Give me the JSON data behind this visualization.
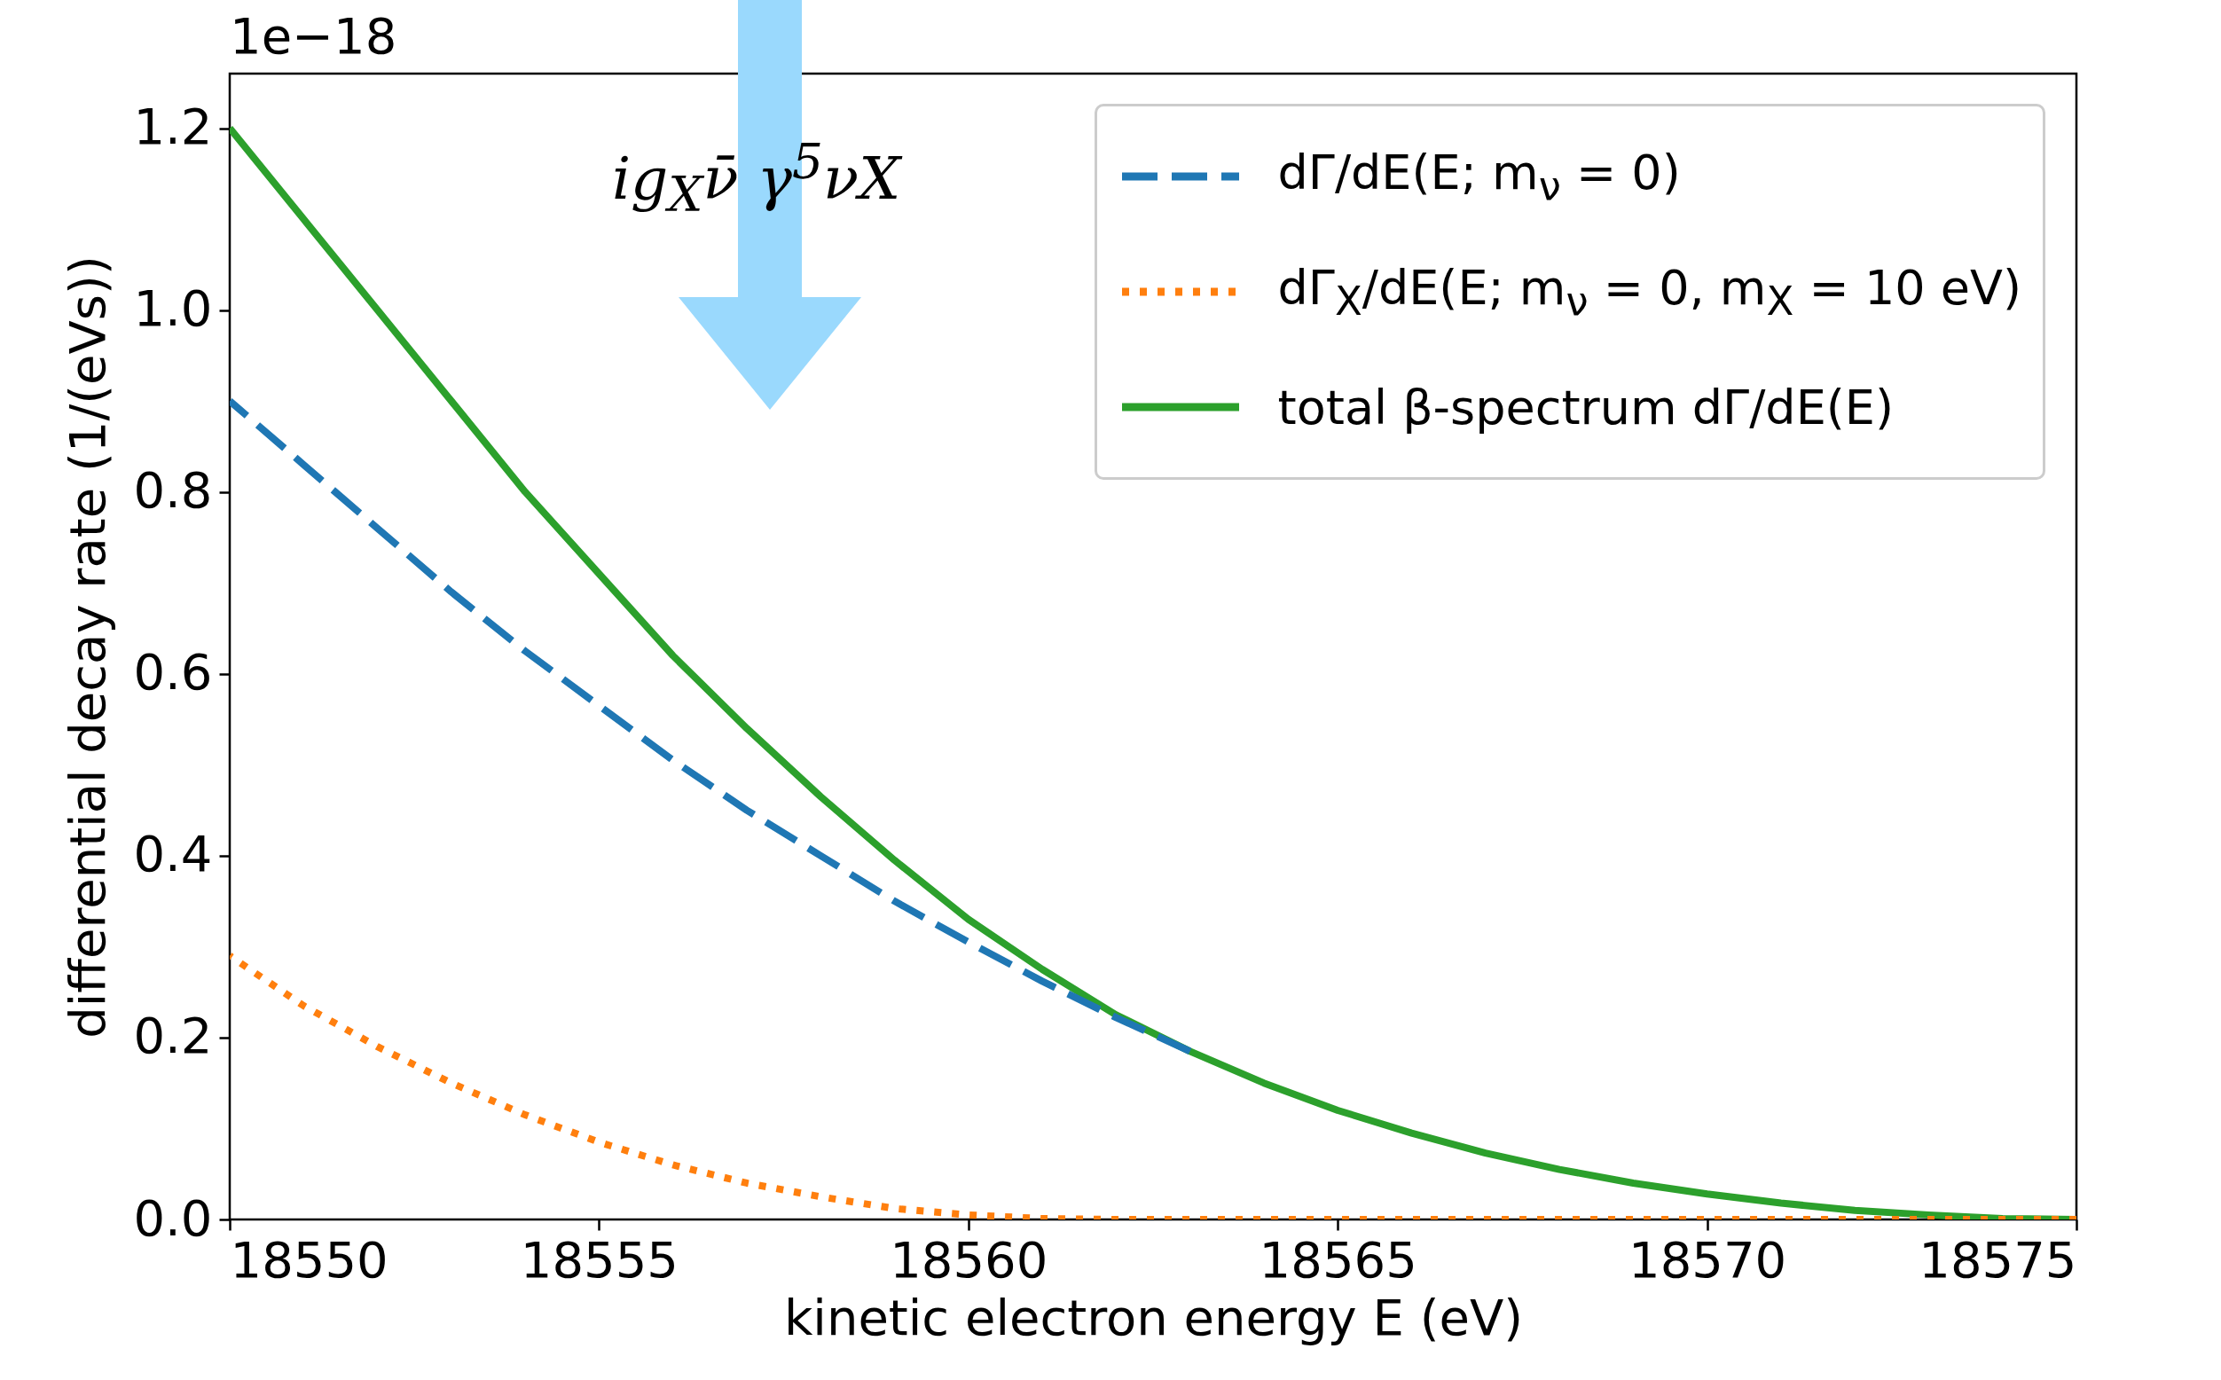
{
  "chart_data": {
    "type": "line",
    "xlabel": "kinetic electron energy E (eV)",
    "ylabel": "differential decay rate (1/(eVs))",
    "annotations": [
      "1e−18",
      "ig$_{X}$ν̄ γ$^{5}$νX"
    ],
    "xlim": [
      18550,
      18575
    ],
    "xticks": [
      18550,
      18555,
      18560,
      18565,
      18570,
      18575
    ],
    "ylim": [
      0,
      1.26
    ],
    "yticks": [
      {
        "value": 0,
        "label": "0.0"
      },
      0.2,
      0.4,
      0.6,
      0.8,
      {
        "value": 1,
        "label": "1.0"
      },
      1.2
    ],
    "legend": "top right",
    "marker": "none",
    "series": [
      {
        "name": "dΓ/dE(E; m$_{ν}$ = 0)",
        "color": "#1f77b4",
        "line_style": "dashed",
        "x": [
          18550,
          18551,
          18552,
          18553,
          18554,
          18555,
          18556,
          18557,
          18558,
          18559,
          18560,
          18561,
          18562,
          18563
        ],
        "values": [
          0.9,
          0.83,
          0.76,
          0.69,
          0.625,
          0.565,
          0.505,
          0.45,
          0.4,
          0.35,
          0.305,
          0.262,
          0.222,
          0.185
        ]
      },
      {
        "name": "dΓ$_{X}$/dE(E; m$_{ν}$ = 0, m$_{X}$ = 10 eV)",
        "color": "#ff7f0e",
        "line_style": "dotted",
        "x": [
          18550,
          18551,
          18552,
          18553,
          18554,
          18555,
          18556,
          18557,
          18558,
          18559,
          18560,
          18561,
          18562,
          18575
        ],
        "values": [
          0.29,
          0.235,
          0.19,
          0.15,
          0.115,
          0.085,
          0.06,
          0.04,
          0.025,
          0.012,
          0.005,
          0.001,
          0,
          0
        ]
      },
      {
        "name": "total β-spectrum dΓ/dE(E)",
        "color": "#2ca02c",
        "line_style": "solid",
        "x": [
          18550,
          18551,
          18552,
          18553,
          18554,
          18555,
          18556,
          18557,
          18558,
          18559,
          18560,
          18561,
          18562,
          18563,
          18564,
          18565,
          18566,
          18567,
          18568,
          18569,
          18570,
          18571,
          18572,
          18573,
          18574,
          18575
        ],
        "values": [
          1.2,
          1.1,
          1.0,
          0.9,
          0.8,
          0.71,
          0.62,
          0.54,
          0.465,
          0.395,
          0.33,
          0.275,
          0.225,
          0.185,
          0.15,
          0.12,
          0.095,
          0.073,
          0.055,
          0.04,
          0.028,
          0.018,
          0.01,
          0.005,
          0.001,
          0
        ]
      }
    ]
  }
}
